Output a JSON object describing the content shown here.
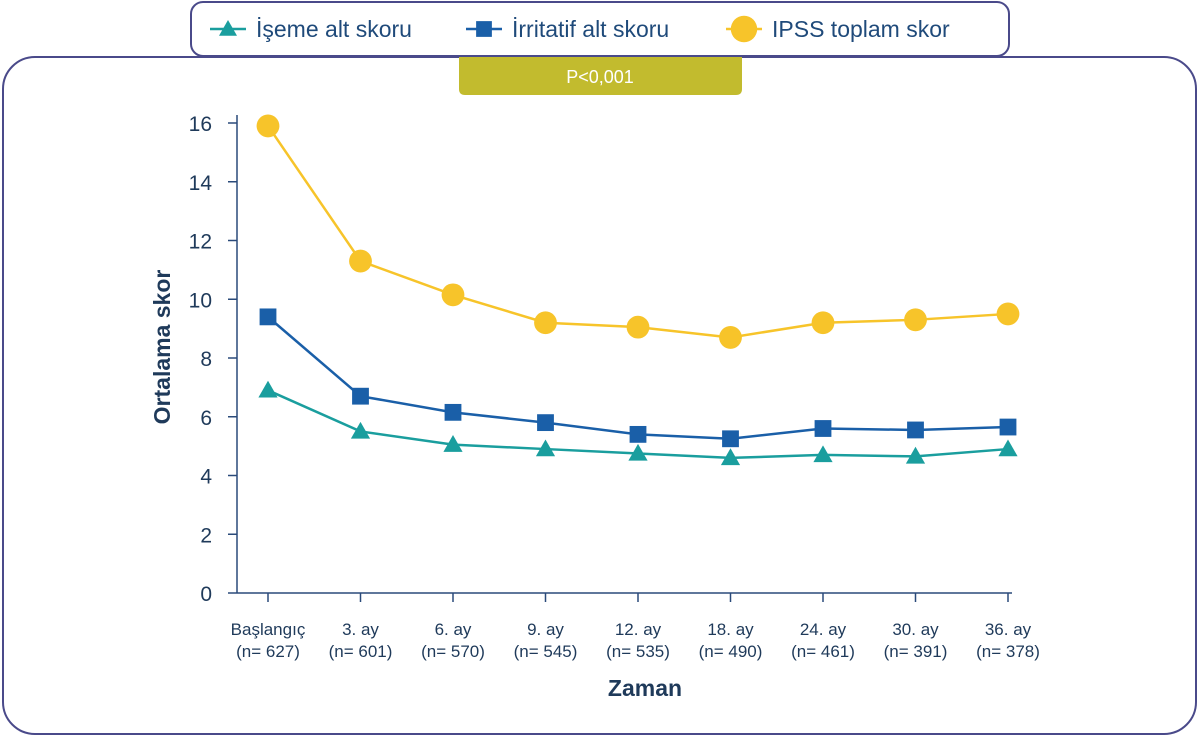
{
  "chart_data": {
    "type": "line",
    "xlabel": "Zaman",
    "ylabel": "Ortalama skor",
    "ylim": [
      0,
      16
    ],
    "yticks": [
      0,
      2,
      4,
      6,
      8,
      10,
      12,
      14,
      16
    ],
    "categories": [
      {
        "label": "Başlangıç",
        "n": "(n= 627)"
      },
      {
        "label": "3. ay",
        "n": "(n= 601)"
      },
      {
        "label": "6. ay",
        "n": "(n= 570)"
      },
      {
        "label": "9. ay",
        "n": "(n= 545)"
      },
      {
        "label": "12. ay",
        "n": "(n= 535)"
      },
      {
        "label": "18. ay",
        "n": "(n= 490)"
      },
      {
        "label": "24. ay",
        "n": "(n= 461)"
      },
      {
        "label": "30. ay",
        "n": "(n= 391)"
      },
      {
        "label": "36. ay",
        "n": "(n= 378)"
      }
    ],
    "series": [
      {
        "name": "İşeme alt skoru",
        "marker": "triangle",
        "color": "#1a9e9e",
        "values": [
          6.9,
          5.5,
          5.05,
          4.9,
          4.75,
          4.6,
          4.7,
          4.65,
          4.9
        ]
      },
      {
        "name": "İrritatif alt skoru",
        "marker": "square",
        "color": "#1a5fa8",
        "values": [
          9.4,
          6.7,
          6.15,
          5.8,
          5.4,
          5.25,
          5.6,
          5.55,
          5.65
        ]
      },
      {
        "name": "IPSS toplam skor",
        "marker": "circle",
        "color": "#f7c42a",
        "values": [
          15.9,
          11.3,
          10.15,
          9.2,
          9.05,
          8.7,
          9.2,
          9.3,
          9.5
        ]
      }
    ],
    "annotation": "P<0,001",
    "annotation_color": "#c2bb2e",
    "frame_color": "#4a4a8a",
    "axis_color": "#2a4a7a"
  }
}
